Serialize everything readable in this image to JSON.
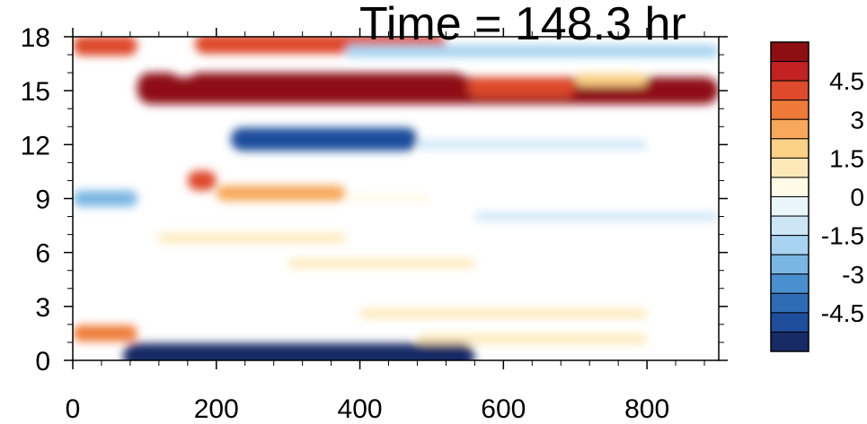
{
  "chart_data": {
    "type": "heatmap",
    "title": "Time = 148.3 hr",
    "xlabel": "",
    "ylabel": "",
    "xlim": [
      0,
      900
    ],
    "ylim": [
      0,
      18
    ],
    "x_ticks": [
      "0",
      "200",
      "400",
      "600",
      "800"
    ],
    "x_tick_values": [
      0,
      200,
      400,
      600,
      800
    ],
    "y_ticks": [
      "0",
      "3",
      "6",
      "9",
      "12",
      "15",
      "18"
    ],
    "y_tick_values": [
      0,
      3,
      6,
      9,
      12,
      15,
      18
    ],
    "colorbar": {
      "labels": [
        "4.5",
        "3",
        "1.5",
        "0",
        "-1.5",
        "-3",
        "-4.5"
      ],
      "label_values": [
        4.5,
        3,
        1.5,
        0,
        -1.5,
        -3,
        -4.5
      ],
      "range": [
        -6,
        6
      ],
      "levels": 16,
      "colors": [
        "#172b66",
        "#1f4e9c",
        "#2e6db5",
        "#4a90cf",
        "#79b6e3",
        "#a7d3f0",
        "#cde6f6",
        "#eaf5fb",
        "#fffbe6",
        "#fde9b8",
        "#fbd186",
        "#f7a85a",
        "#ef7a38",
        "#de4a2b",
        "#c22222",
        "#8e0f12"
      ]
    },
    "features": [
      {
        "x": [
          90,
          900
        ],
        "y": 15.0,
        "value": 6.0
      },
      {
        "x": [
          90,
          150
        ],
        "y": 15.3,
        "value": 5.5
      },
      {
        "x": [
          160,
          550
        ],
        "y": 15.3,
        "value": 5.5
      },
      {
        "x": [
          550,
          700
        ],
        "y": 15.2,
        "value": 4.0
      },
      {
        "x": [
          700,
          800
        ],
        "y": 15.6,
        "value": 2.0
      },
      {
        "x": [
          220,
          480
        ],
        "y": 12.3,
        "value": -5.0
      },
      {
        "x": [
          480,
          800
        ],
        "y": 12.0,
        "value": -1.0
      },
      {
        "x": [
          160,
          200
        ],
        "y": 10.0,
        "value": 4.0
      },
      {
        "x": [
          200,
          380
        ],
        "y": 9.3,
        "value": 2.8
      },
      {
        "x": [
          380,
          500
        ],
        "y": 9.0,
        "value": 0.6
      },
      {
        "x": [
          120,
          380
        ],
        "y": 6.8,
        "value": 1.2
      },
      {
        "x": [
          300,
          560
        ],
        "y": 5.4,
        "value": 1.0
      },
      {
        "x": [
          400,
          800
        ],
        "y": 2.6,
        "value": 1.1
      },
      {
        "x": [
          480,
          800
        ],
        "y": 1.2,
        "value": 1.2
      },
      {
        "x": [
          560,
          900
        ],
        "y": 8.0,
        "value": -0.8
      },
      {
        "x": [
          70,
          560
        ],
        "y": 0.2,
        "value": -6.0
      },
      {
        "x": [
          0,
          90
        ],
        "y": 9.0,
        "value": -3.0
      },
      {
        "x": [
          0,
          90
        ],
        "y": 1.5,
        "value": 3.0
      },
      {
        "x": [
          0,
          90
        ],
        "y": 17.5,
        "value": 4.0
      },
      {
        "x": [
          170,
          520
        ],
        "y": 17.6,
        "value": 4.0
      },
      {
        "x": [
          380,
          900
        ],
        "y": 17.2,
        "value": -2.0
      }
    ]
  }
}
